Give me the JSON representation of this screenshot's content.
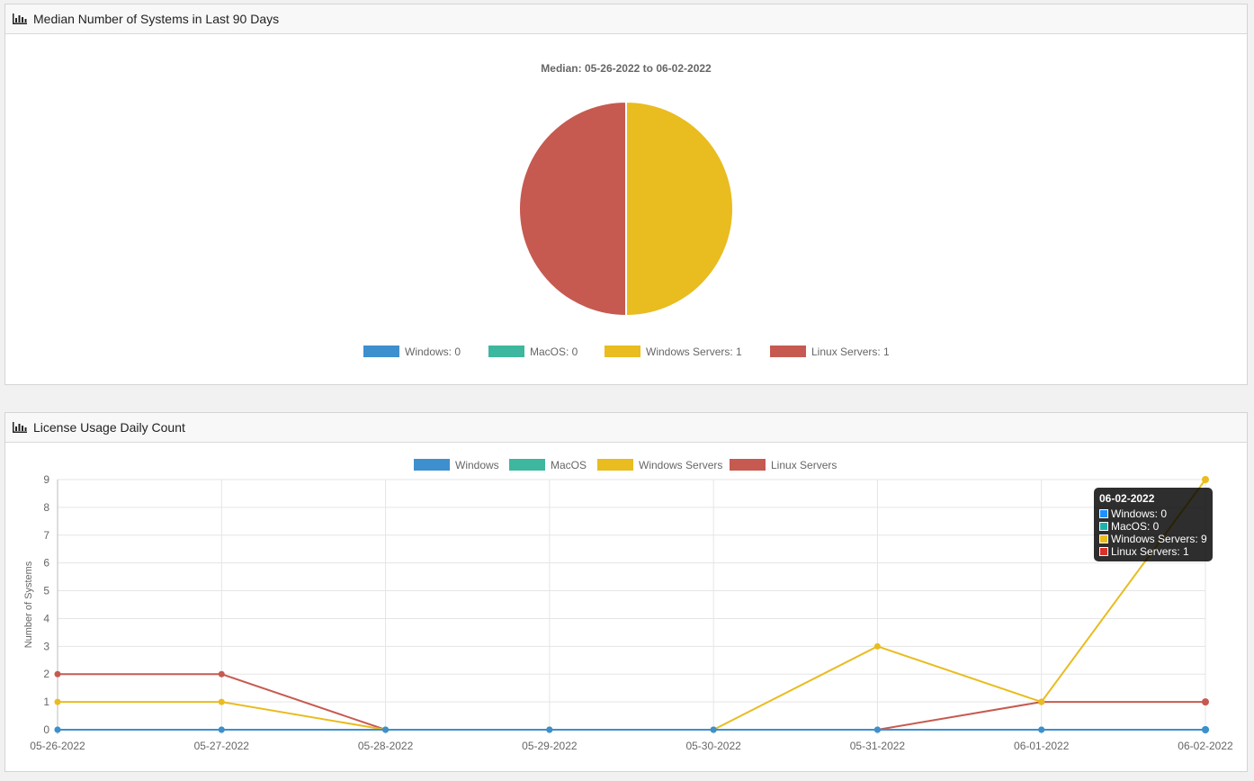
{
  "panels": {
    "pie": {
      "title": "Median Number of Systems in Last 90 Days",
      "icon": "bar-chart-icon"
    },
    "line": {
      "title": "License Usage Daily Count",
      "icon": "bar-chart-icon"
    }
  },
  "colors": {
    "windows": "#3e8fce",
    "macos": "#3db79e",
    "windows_servers": "#e9bc1f",
    "linux_servers": "#c65a50"
  },
  "chart_data": [
    {
      "type": "pie",
      "title": "Median: 05-26-2022 to 06-02-2022",
      "legend": [
        "Windows: 0",
        "MacOS: 0",
        "Windows Servers: 1",
        "Linux Servers: 1"
      ],
      "slices": [
        {
          "name": "Windows",
          "value": 0
        },
        {
          "name": "MacOS",
          "value": 0
        },
        {
          "name": "Windows Servers",
          "value": 1
        },
        {
          "name": "Linux Servers",
          "value": 1
        }
      ]
    },
    {
      "type": "line",
      "x": [
        "05-26-2022",
        "05-27-2022",
        "05-28-2022",
        "05-29-2022",
        "05-30-2022",
        "05-31-2022",
        "06-01-2022",
        "06-02-2022"
      ],
      "ylabel": "Number of Systems",
      "ylim": [
        0,
        9
      ],
      "yticks": [
        "0",
        "1",
        "2",
        "3",
        "4",
        "5",
        "6",
        "7",
        "8",
        "9"
      ],
      "grid": true,
      "legend_position": "top",
      "series": [
        {
          "name": "Windows",
          "values": [
            0,
            0,
            0,
            0,
            0,
            0,
            0,
            0
          ]
        },
        {
          "name": "MacOS",
          "values": [
            0,
            0,
            0,
            0,
            0,
            0,
            0,
            0
          ]
        },
        {
          "name": "Windows Servers",
          "values": [
            1,
            1,
            0,
            0,
            0,
            3,
            1,
            9
          ]
        },
        {
          "name": "Linux Servers",
          "values": [
            2,
            2,
            0,
            0,
            0,
            0,
            1,
            1
          ]
        }
      ],
      "tooltip": {
        "title": "06-02-2022",
        "rows": [
          "Windows: 0",
          "MacOS: 0",
          "Windows Servers: 9",
          "Linux Servers: 1"
        ],
        "row_colors": [
          "#1e90ff",
          "#20b2aa",
          "#e9bc1f",
          "#d9312b"
        ]
      }
    }
  ]
}
